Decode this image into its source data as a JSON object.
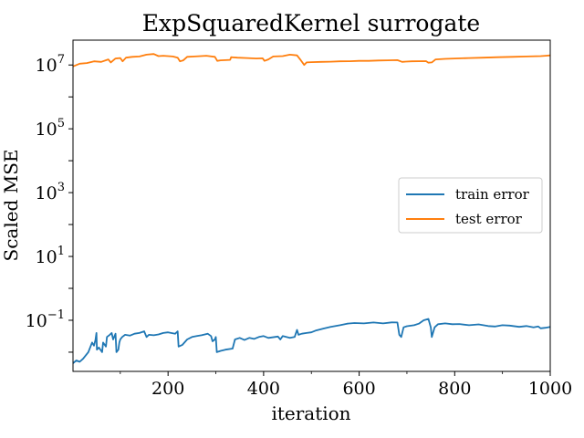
{
  "chart_data": {
    "type": "line",
    "title": "ExpSquaredKernel surrogate",
    "xlabel": "iteration",
    "ylabel": "Scaled MSE",
    "xlim": [
      1,
      1000
    ],
    "ylim": [
      0.0025,
      60000000
    ],
    "yscale": "log",
    "grid": false,
    "legend_position": "center-right",
    "x_ticks": [
      {
        "value": 200,
        "label": "200"
      },
      {
        "value": 400,
        "label": "400"
      },
      {
        "value": 600,
        "label": "600"
      },
      {
        "value": 800,
        "label": "800"
      },
      {
        "value": 1000,
        "label": "1000"
      }
    ],
    "y_ticks": [
      {
        "value": 0.1,
        "base": "10",
        "exp": "−1"
      },
      {
        "value": 10,
        "base": "10",
        "exp": "1"
      },
      {
        "value": 1000,
        "base": "10",
        "exp": "3"
      },
      {
        "value": 100000,
        "base": "10",
        "exp": "5"
      },
      {
        "value": 10000000,
        "base": "10",
        "exp": "7"
      }
    ],
    "series": [
      {
        "name": "train error",
        "color": "#1f77b4",
        "points": [
          [
            1,
            0.0045
          ],
          [
            8,
            0.0055
          ],
          [
            15,
            0.005
          ],
          [
            22,
            0.0062
          ],
          [
            28,
            0.008
          ],
          [
            33,
            0.01
          ],
          [
            37,
            0.014
          ],
          [
            41,
            0.02
          ],
          [
            45,
            0.016
          ],
          [
            48,
            0.024
          ],
          [
            50,
            0.04
          ],
          [
            51,
            0.012
          ],
          [
            55,
            0.014
          ],
          [
            62,
            0.01
          ],
          [
            64,
            0.02
          ],
          [
            70,
            0.015
          ],
          [
            72,
            0.03
          ],
          [
            78,
            0.035
          ],
          [
            82,
            0.04
          ],
          [
            85,
            0.025
          ],
          [
            90,
            0.038
          ],
          [
            92,
            0.01
          ],
          [
            96,
            0.012
          ],
          [
            98,
            0.02
          ],
          [
            100,
            0.025
          ],
          [
            104,
            0.03
          ],
          [
            110,
            0.035
          ],
          [
            120,
            0.033
          ],
          [
            130,
            0.038
          ],
          [
            140,
            0.04
          ],
          [
            150,
            0.045
          ],
          [
            155,
            0.03
          ],
          [
            160,
            0.035
          ],
          [
            170,
            0.034
          ],
          [
            180,
            0.036
          ],
          [
            190,
            0.04
          ],
          [
            200,
            0.042
          ],
          [
            215,
            0.038
          ],
          [
            220,
            0.045
          ],
          [
            222,
            0.015
          ],
          [
            230,
            0.017
          ],
          [
            240,
            0.025
          ],
          [
            250,
            0.03
          ],
          [
            260,
            0.032
          ],
          [
            270,
            0.034
          ],
          [
            283,
            0.038
          ],
          [
            290,
            0.032
          ],
          [
            293,
            0.022
          ],
          [
            298,
            0.025
          ],
          [
            300,
            0.03
          ],
          [
            302,
            0.01
          ],
          [
            310,
            0.011
          ],
          [
            320,
            0.012
          ],
          [
            335,
            0.013
          ],
          [
            340,
            0.025
          ],
          [
            350,
            0.028
          ],
          [
            360,
            0.024
          ],
          [
            370,
            0.028
          ],
          [
            380,
            0.026
          ],
          [
            390,
            0.03
          ],
          [
            400,
            0.032
          ],
          [
            410,
            0.028
          ],
          [
            430,
            0.031
          ],
          [
            435,
            0.025
          ],
          [
            440,
            0.032
          ],
          [
            455,
            0.028
          ],
          [
            465,
            0.03
          ],
          [
            470,
            0.05
          ],
          [
            473,
            0.035
          ],
          [
            480,
            0.038
          ],
          [
            490,
            0.04
          ],
          [
            500,
            0.042
          ],
          [
            510,
            0.048
          ],
          [
            525,
            0.055
          ],
          [
            540,
            0.062
          ],
          [
            560,
            0.07
          ],
          [
            575,
            0.078
          ],
          [
            590,
            0.082
          ],
          [
            610,
            0.08
          ],
          [
            630,
            0.085
          ],
          [
            650,
            0.08
          ],
          [
            668,
            0.086
          ],
          [
            680,
            0.085
          ],
          [
            684,
            0.035
          ],
          [
            688,
            0.03
          ],
          [
            693,
            0.06
          ],
          [
            700,
            0.065
          ],
          [
            715,
            0.07
          ],
          [
            725,
            0.078
          ],
          [
            735,
            0.1
          ],
          [
            745,
            0.11
          ],
          [
            750,
            0.06
          ],
          [
            752,
            0.03
          ],
          [
            758,
            0.06
          ],
          [
            765,
            0.075
          ],
          [
            780,
            0.08
          ],
          [
            795,
            0.075
          ],
          [
            810,
            0.076
          ],
          [
            830,
            0.07
          ],
          [
            850,
            0.074
          ],
          [
            870,
            0.066
          ],
          [
            885,
            0.064
          ],
          [
            900,
            0.07
          ],
          [
            915,
            0.068
          ],
          [
            935,
            0.062
          ],
          [
            950,
            0.066
          ],
          [
            965,
            0.06
          ],
          [
            975,
            0.064
          ],
          [
            980,
            0.056
          ],
          [
            990,
            0.058
          ],
          [
            1000,
            0.062
          ]
        ]
      },
      {
        "name": "test error",
        "color": "#ff7f0e",
        "points": [
          [
            1,
            9000000
          ],
          [
            15,
            11000000
          ],
          [
            30,
            11500000
          ],
          [
            45,
            13000000
          ],
          [
            60,
            12500000
          ],
          [
            75,
            15000000
          ],
          [
            80,
            12000000
          ],
          [
            90,
            16000000
          ],
          [
            100,
            16500000
          ],
          [
            105,
            13000000
          ],
          [
            112,
            17000000
          ],
          [
            125,
            18000000
          ],
          [
            140,
            18500000
          ],
          [
            155,
            21000000
          ],
          [
            170,
            22000000
          ],
          [
            180,
            19000000
          ],
          [
            190,
            19500000
          ],
          [
            210,
            18500000
          ],
          [
            220,
            17000000
          ],
          [
            225,
            13000000
          ],
          [
            232,
            14000000
          ],
          [
            240,
            18000000
          ],
          [
            255,
            18500000
          ],
          [
            268,
            19000000
          ],
          [
            280,
            19500000
          ],
          [
            298,
            18000000
          ],
          [
            303,
            13500000
          ],
          [
            310,
            14000000
          ],
          [
            330,
            14500000
          ],
          [
            332,
            17500000
          ],
          [
            345,
            17000000
          ],
          [
            365,
            16500000
          ],
          [
            385,
            16000000
          ],
          [
            398,
            16200000
          ],
          [
            402,
            13500000
          ],
          [
            410,
            15000000
          ],
          [
            420,
            18500000
          ],
          [
            440,
            19000000
          ],
          [
            455,
            21000000
          ],
          [
            470,
            20000000
          ],
          [
            478,
            14000000
          ],
          [
            485,
            10000000
          ],
          [
            490,
            12000000
          ],
          [
            500,
            12300000
          ],
          [
            520,
            12500000
          ],
          [
            540,
            12700000
          ],
          [
            560,
            13000000
          ],
          [
            580,
            13100000
          ],
          [
            600,
            13500000
          ],
          [
            620,
            13500000
          ],
          [
            640,
            13800000
          ],
          [
            660,
            14000000
          ],
          [
            680,
            14200000
          ],
          [
            690,
            12500000
          ],
          [
            698,
            12800000
          ],
          [
            710,
            13000000
          ],
          [
            740,
            13200000
          ],
          [
            745,
            11800000
          ],
          [
            752,
            12000000
          ],
          [
            760,
            15000000
          ],
          [
            780,
            15600000
          ],
          [
            800,
            16000000
          ],
          [
            830,
            16500000
          ],
          [
            860,
            17000000
          ],
          [
            890,
            17500000
          ],
          [
            920,
            18000000
          ],
          [
            950,
            18500000
          ],
          [
            980,
            19000000
          ],
          [
            990,
            19500000
          ],
          [
            1000,
            20000000
          ]
        ]
      }
    ]
  }
}
